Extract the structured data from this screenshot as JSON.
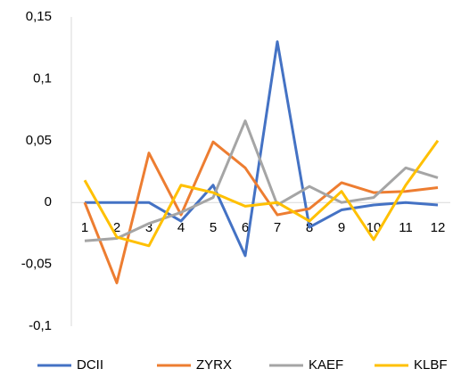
{
  "chart_data": {
    "type": "line",
    "categories": [
      "1",
      "2",
      "3",
      "4",
      "5",
      "6",
      "7",
      "8",
      "9",
      "10",
      "11",
      "12"
    ],
    "series": [
      {
        "name": "DCII",
        "color": "#4472c4",
        "values": [
          0,
          0,
          0,
          -0.015,
          0.014,
          -0.043,
          0.13,
          -0.02,
          -0.006,
          -0.002,
          0,
          -0.002
        ]
      },
      {
        "name": "ZYRX",
        "color": "#ed7d31",
        "values": [
          0,
          -0.065,
          0.04,
          -0.01,
          0.049,
          0.028,
          -0.01,
          -0.005,
          0.016,
          0.008,
          0.009,
          0.012
        ]
      },
      {
        "name": "KAEF",
        "color": "#a5a5a5",
        "values": [
          -0.031,
          -0.029,
          -0.017,
          -0.008,
          0.004,
          0.066,
          -0.002,
          0.013,
          0,
          0.004,
          0.028,
          0.02
        ]
      },
      {
        "name": "KLBF",
        "color": "#ffc000",
        "values": [
          0.018,
          -0.028,
          -0.035,
          0.014,
          0.008,
          -0.003,
          0,
          -0.015,
          0.009,
          -0.03,
          0.014,
          0.05
        ]
      }
    ],
    "ylim": [
      -0.1,
      0.15
    ],
    "yticks": [
      {
        "value": -0.1,
        "label": "-0,1"
      },
      {
        "value": -0.05,
        "label": "-0,05"
      },
      0,
      {
        "value": 0.05,
        "label": "0,05"
      },
      {
        "value": 0.1,
        "label": "0,1"
      },
      {
        "value": 0.15,
        "label": "0,15"
      }
    ],
    "grid": false,
    "legend": "bottom"
  }
}
